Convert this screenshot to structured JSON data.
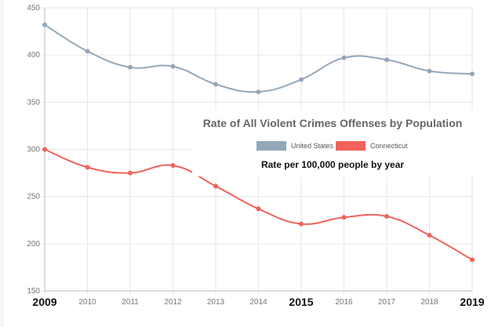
{
  "chart_data": {
    "type": "line",
    "title": "Rate of All Violent Crimes Offenses by Population",
    "subtitle": "Rate per 100,000 people by year",
    "xlabel": "",
    "ylabel": "",
    "x": [
      "2009",
      "2010",
      "2011",
      "2012",
      "2013",
      "2014",
      "2015",
      "2016",
      "2017",
      "2018",
      "2019"
    ],
    "bold_x_labels": [
      "2009",
      "2015",
      "2019"
    ],
    "ylim": [
      150,
      450
    ],
    "yticks": [
      "150",
      "200",
      "250",
      "300",
      "350",
      "400",
      "450"
    ],
    "grid": true,
    "legend": "center",
    "series": [
      {
        "name": "United States",
        "color": "#94a7b9",
        "values": [
          432,
          404,
          387,
          388,
          369,
          361,
          374,
          397,
          395,
          383,
          380
        ]
      },
      {
        "name": "Connecticut",
        "color": "#f0625a",
        "values": [
          300,
          281,
          275,
          283,
          261,
          237,
          221,
          228,
          229,
          209,
          183
        ]
      }
    ]
  }
}
